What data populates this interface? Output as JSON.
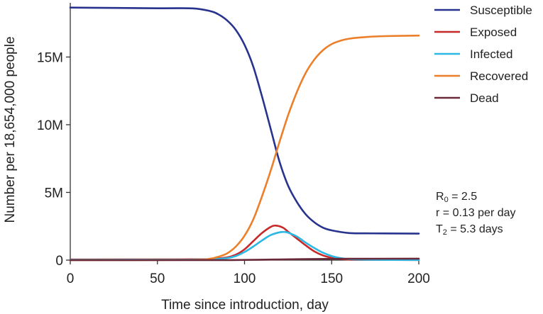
{
  "chart_data": {
    "type": "line",
    "xlabel": "Time since introduction, day",
    "ylabel": "Number per 18,654,000 people",
    "xlim": [
      0,
      200
    ],
    "ylim": [
      0,
      19000000
    ],
    "x_ticks": [
      0,
      50,
      100,
      150,
      200
    ],
    "x_tick_labels": [
      "0",
      "50",
      "100",
      "150",
      "200"
    ],
    "y_ticks": [
      0,
      5000000,
      10000000,
      15000000
    ],
    "y_tick_labels": [
      "0",
      "5M",
      "10M",
      "15M"
    ],
    "grid": false,
    "legend_position": "top-right",
    "series": [
      {
        "name": "Susceptible",
        "color": "#28338d",
        "x": [
          0,
          50,
          70,
          80,
          85,
          90,
          95,
          100,
          105,
          110,
          115,
          120,
          125,
          130,
          135,
          140,
          145,
          150,
          160,
          170,
          180,
          200
        ],
        "values": [
          18650000,
          18600000,
          18590000,
          18400000,
          18150000,
          17700000,
          17000000,
          15900000,
          14300000,
          12100000,
          9700000,
          7300000,
          5500000,
          4300000,
          3400000,
          2800000,
          2400000,
          2200000,
          2000000,
          1980000,
          1970000,
          1960000
        ]
      },
      {
        "name": "Exposed",
        "color": "#c62a2a",
        "x": [
          0,
          70,
          80,
          90,
          95,
          100,
          105,
          110,
          115,
          118,
          122,
          125,
          130,
          135,
          140,
          145,
          150,
          155,
          160,
          170,
          200
        ],
        "values": [
          50000,
          60000,
          80000,
          200000,
          400000,
          800000,
          1400000,
          2000000,
          2450000,
          2550000,
          2400000,
          2100000,
          1600000,
          1100000,
          650000,
          350000,
          170000,
          80000,
          40000,
          20000,
          10000
        ]
      },
      {
        "name": "Infected",
        "color": "#2db7e4",
        "x": [
          0,
          70,
          80,
          90,
          95,
          100,
          105,
          110,
          115,
          120,
          123,
          125,
          130,
          135,
          140,
          145,
          150,
          155,
          160,
          170,
          200
        ],
        "values": [
          30000,
          40000,
          60000,
          150000,
          300000,
          600000,
          1000000,
          1450000,
          1850000,
          2050000,
          2080000,
          2030000,
          1750000,
          1300000,
          900000,
          550000,
          300000,
          150000,
          80000,
          30000,
          10000
        ]
      },
      {
        "name": "Recovered",
        "color": "#ec7f2a",
        "x": [
          0,
          70,
          80,
          85,
          90,
          95,
          100,
          105,
          110,
          115,
          120,
          125,
          130,
          135,
          140,
          145,
          150,
          155,
          160,
          170,
          180,
          200
        ],
        "values": [
          0,
          20000,
          100000,
          250000,
          500000,
          1000000,
          1800000,
          3000000,
          4700000,
          6600000,
          8700000,
          10700000,
          12400000,
          13800000,
          14800000,
          15500000,
          15950000,
          16200000,
          16350000,
          16480000,
          16540000,
          16580000
        ]
      },
      {
        "name": "Dead",
        "color": "#6a2a3a",
        "x": [
          0,
          80,
          100,
          120,
          140,
          160,
          200
        ],
        "values": [
          0,
          2000,
          15000,
          50000,
          85000,
          100000,
          110000
        ]
      }
    ],
    "annotations": [
      {
        "base": "R",
        "sub": "0",
        "text": " = 2.5"
      },
      {
        "base": "r",
        "sub": "",
        "text": " = 0.13 per day"
      },
      {
        "base": "T",
        "sub": "2",
        "text": " = 5.3 days"
      }
    ]
  }
}
